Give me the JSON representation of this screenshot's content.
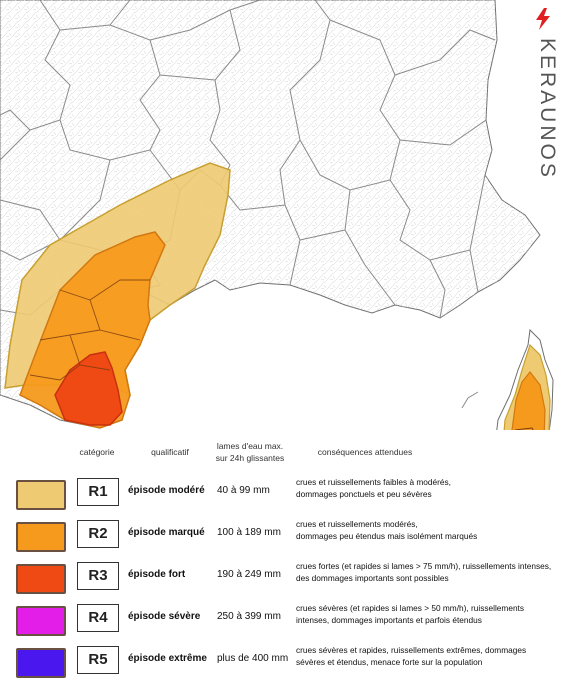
{
  "brand": {
    "name": "KERAUNOS",
    "logo_icon": "lightning-bolt-icon",
    "accent": "#e02020"
  },
  "legend": {
    "headers": {
      "category": "catégorie",
      "qualifier": "qualificatif",
      "depth_line1": "lames d'eau max.",
      "depth_line2": "sur 24h glissantes",
      "consequences": "conséquences attendues"
    },
    "rows": [
      {
        "code": "R1",
        "qualifier": "épisode modéré",
        "depth": "40 à 99 mm",
        "cons1": "crues et ruissellements faibles à modérés,",
        "cons2": "dommages ponctuels et peu sévères",
        "color": "#eecb72"
      },
      {
        "code": "R2",
        "qualifier": "épisode marqué",
        "depth": "100 à 189 mm",
        "cons1": "crues et ruissellements modérés,",
        "cons2": "dommages peu étendus mais isolément marqués",
        "color": "#f59a1c"
      },
      {
        "code": "R3",
        "qualifier": "épisode fort",
        "depth": "190 à 249 mm",
        "cons1": "crues fortes (et rapides si lames > 75 mm/h), ruissellements intenses,",
        "cons2": "des dommages importants sont possibles",
        "color": "#f04a14"
      },
      {
        "code": "R4",
        "qualifier": "épisode sévère",
        "depth": "250 à 399 mm",
        "cons1": "crues sévères (et rapides si lames > 50 mm/h), ruissellements",
        "cons2": "intenses,  dommages importants et parfois étendus",
        "color": "#e21ee8"
      },
      {
        "code": "R5",
        "qualifier": "épisode extrême",
        "depth": "plus de 400 mm",
        "cons1": "crues sévères et rapides, ruissellements extrêmes, dommages",
        "cons2": "sévères et étendus, menace forte sur la population",
        "color": "#4a18ee"
      }
    ]
  },
  "map": {
    "zones": [
      {
        "level": "R1",
        "color": "#eecb72",
        "stroke": "#c8a030"
      },
      {
        "level": "R2",
        "color": "#f59a1c",
        "stroke": "#d27810"
      },
      {
        "level": "R3",
        "color": "#f04a14",
        "stroke": "#c83010"
      }
    ],
    "land": "#ffffff",
    "sea": "#ffffff",
    "borders": "#8a8a8a"
  }
}
